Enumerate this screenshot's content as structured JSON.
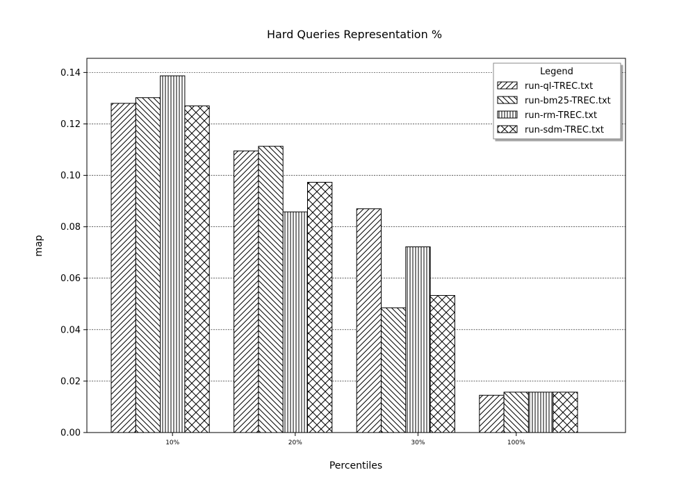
{
  "chart_data": {
    "type": "bar",
    "title": "Hard Queries Representation %",
    "xlabel": "Percentiles",
    "ylabel": "map",
    "categories": [
      "10%",
      "20%",
      "30%",
      "100%"
    ],
    "ylim": [
      0,
      0.1455
    ],
    "yticks": [
      "0.00",
      "0.02",
      "0.04",
      "0.06",
      "0.08",
      "0.10",
      "0.12",
      "0.14"
    ],
    "grid": "horizontal dashed",
    "legend": {
      "title": "Legend",
      "placement": "top-right"
    },
    "series": [
      {
        "name": "run-ql-TREC.txt",
        "hatch": "forward-diagonal",
        "values": [
          0.128,
          0.1095,
          0.087,
          0.0145
        ]
      },
      {
        "name": "run-bm25-TREC.txt",
        "hatch": "back-diagonal",
        "values": [
          0.1302,
          0.1113,
          0.0485,
          0.0157
        ]
      },
      {
        "name": "run-rm-TREC.txt",
        "hatch": "vertical",
        "values": [
          0.1387,
          0.0858,
          0.0722,
          0.0157
        ]
      },
      {
        "name": "run-sdm-TREC.txt",
        "hatch": "cross",
        "values": [
          0.127,
          0.0973,
          0.0533,
          0.0157
        ]
      }
    ]
  }
}
